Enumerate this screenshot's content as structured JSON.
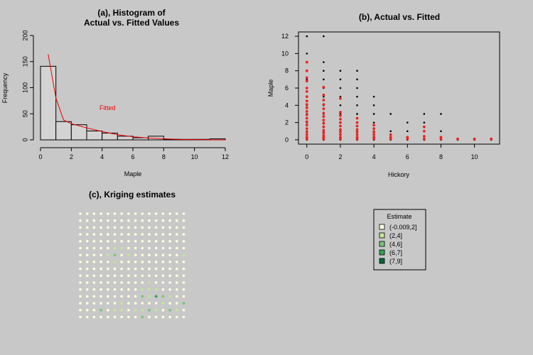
{
  "colors": {
    "background": "#c8c8c8",
    "fitted": "#ee0000",
    "actual": "#000000"
  },
  "chart_data": [
    {
      "type": "bar",
      "title_lines": [
        "(a), Histogram of",
        "Actual vs. Fitted Values"
      ],
      "xlabel": "Maple",
      "ylabel": "Frequency",
      "xlim": [
        0,
        12
      ],
      "ylim": [
        0,
        200
      ],
      "xticks": [
        "0",
        "2",
        "4",
        "6",
        "8",
        "10",
        "12"
      ],
      "yticks": [
        "0",
        "50",
        "100",
        "150",
        "200"
      ],
      "bins": [
        {
          "x0": 0,
          "x1": 1,
          "count": 141
        },
        {
          "x0": 1,
          "x1": 2,
          "count": 35
        },
        {
          "x0": 2,
          "x1": 3,
          "count": 29
        },
        {
          "x0": 3,
          "x1": 4,
          "count": 17
        },
        {
          "x0": 4,
          "x1": 5,
          "count": 13
        },
        {
          "x0": 5,
          "x1": 6,
          "count": 7
        },
        {
          "x0": 6,
          "x1": 7,
          "count": 4
        },
        {
          "x0": 7,
          "x1": 8,
          "count": 7
        },
        {
          "x0": 8,
          "x1": 9,
          "count": 1
        },
        {
          "x0": 9,
          "x1": 10,
          "count": 1
        },
        {
          "x0": 10,
          "x1": 11,
          "count": 1
        },
        {
          "x0": 11,
          "x1": 12,
          "count": 2
        }
      ],
      "fitted_curve": {
        "name": "Fitted",
        "x": [
          0.5,
          1,
          1.5,
          2,
          3,
          4,
          5,
          6,
          7,
          8,
          9,
          10,
          11,
          12
        ],
        "y": [
          164,
          80,
          38,
          31,
          23,
          16,
          10,
          6,
          3.5,
          2,
          1,
          0.5,
          0.2,
          0.1
        ]
      }
    },
    {
      "type": "scatter",
      "title": "(b), Actual vs. Fitted",
      "xlabel": "Hickory",
      "ylabel": "Maple",
      "xlim": [
        -0.5,
        11.5
      ],
      "ylim": [
        -0.5,
        12.5
      ],
      "xticks": [
        "0",
        "2",
        "4",
        "6",
        "8",
        "10"
      ],
      "yticks": [
        "0",
        "2",
        "4",
        "6",
        "8",
        "10",
        "12"
      ],
      "series": [
        {
          "label": "actual",
          "points": [
            [
              0,
              0
            ],
            [
              0,
              1
            ],
            [
              0,
              2
            ],
            [
              0,
              3
            ],
            [
              0,
              4
            ],
            [
              0,
              5
            ],
            [
              0,
              6
            ],
            [
              0,
              7
            ],
            [
              0,
              8
            ],
            [
              0,
              9
            ],
            [
              0,
              10
            ],
            [
              0,
              12
            ],
            [
              1,
              0
            ],
            [
              1,
              1
            ],
            [
              1,
              2
            ],
            [
              1,
              3
            ],
            [
              1,
              4
            ],
            [
              1,
              5
            ],
            [
              1,
              6
            ],
            [
              1,
              7
            ],
            [
              1,
              8
            ],
            [
              1,
              9
            ],
            [
              1,
              12
            ],
            [
              2,
              0
            ],
            [
              2,
              1
            ],
            [
              2,
              2
            ],
            [
              2,
              3
            ],
            [
              2,
              4
            ],
            [
              2,
              5
            ],
            [
              2,
              6
            ],
            [
              2,
              7
            ],
            [
              2,
              8
            ],
            [
              3,
              0
            ],
            [
              3,
              1
            ],
            [
              3,
              2
            ],
            [
              3,
              3
            ],
            [
              3,
              4
            ],
            [
              3,
              5
            ],
            [
              3,
              6
            ],
            [
              3,
              7
            ],
            [
              3,
              8
            ],
            [
              4,
              0
            ],
            [
              4,
              1
            ],
            [
              4,
              2
            ],
            [
              4,
              3
            ],
            [
              4,
              4
            ],
            [
              4,
              5
            ],
            [
              5,
              0
            ],
            [
              5,
              1
            ],
            [
              5,
              3
            ],
            [
              6,
              0
            ],
            [
              6,
              1
            ],
            [
              6,
              2
            ],
            [
              7,
              0
            ],
            [
              7,
              1
            ],
            [
              7,
              2
            ],
            [
              7,
              3
            ],
            [
              8,
              0
            ],
            [
              8,
              1
            ],
            [
              8,
              3
            ],
            [
              9,
              0
            ],
            [
              10,
              0
            ],
            [
              11,
              0
            ]
          ]
        },
        {
          "label": "fitted",
          "points": [
            [
              0,
              0.1
            ],
            [
              0,
              0.3
            ],
            [
              0,
              0.6
            ],
            [
              0,
              0.9
            ],
            [
              0,
              1.3
            ],
            [
              0,
              1.7
            ],
            [
              0,
              2.1
            ],
            [
              0,
              2.5
            ],
            [
              0,
              2.9
            ],
            [
              0,
              3.3
            ],
            [
              0,
              3.7
            ],
            [
              0,
              4.1
            ],
            [
              0,
              4.5
            ],
            [
              0,
              5.0
            ],
            [
              0,
              5.6
            ],
            [
              0,
              6.0
            ],
            [
              0,
              6.8
            ],
            [
              0,
              7.2
            ],
            [
              0,
              8.0
            ],
            [
              0,
              9.0
            ],
            [
              1,
              0.1
            ],
            [
              1,
              0.3
            ],
            [
              1,
              0.5
            ],
            [
              1,
              0.8
            ],
            [
              1,
              1.1
            ],
            [
              1,
              1.5
            ],
            [
              1,
              1.9
            ],
            [
              1,
              2.3
            ],
            [
              1,
              2.7
            ],
            [
              1,
              3.1
            ],
            [
              1,
              3.6
            ],
            [
              1,
              4.1
            ],
            [
              1,
              4.6
            ],
            [
              1,
              5.2
            ],
            [
              1,
              6.1
            ],
            [
              2,
              0.1
            ],
            [
              2,
              0.3
            ],
            [
              2,
              0.6
            ],
            [
              2,
              0.9
            ],
            [
              2,
              1.2
            ],
            [
              2,
              1.6
            ],
            [
              2,
              2.0
            ],
            [
              2,
              2.4
            ],
            [
              2,
              2.8
            ],
            [
              2,
              3.2
            ],
            [
              2,
              4.8
            ],
            [
              3,
              0.1
            ],
            [
              3,
              0.3
            ],
            [
              3,
              0.6
            ],
            [
              3,
              0.9
            ],
            [
              3,
              1.2
            ],
            [
              3,
              1.6
            ],
            [
              3,
              2.0
            ],
            [
              3,
              2.5
            ],
            [
              4,
              0.1
            ],
            [
              4,
              0.3
            ],
            [
              4,
              0.6
            ],
            [
              4,
              0.9
            ],
            [
              4,
              1.3
            ],
            [
              4,
              1.7
            ],
            [
              5,
              0.1
            ],
            [
              5,
              0.3
            ],
            [
              5,
              0.6
            ],
            [
              6,
              0.1
            ],
            [
              6,
              0.3
            ],
            [
              7,
              0.1
            ],
            [
              7,
              0.4
            ],
            [
              7,
              1.0
            ],
            [
              7,
              1.5
            ],
            [
              8,
              0.1
            ],
            [
              8,
              0.3
            ],
            [
              9,
              0.1
            ],
            [
              10,
              0.1
            ],
            [
              11,
              0.1
            ]
          ]
        }
      ]
    },
    {
      "type": "heatmap",
      "title": "(c), Kriging estimates",
      "legend": {
        "title": "Estimate",
        "labels": [
          "(-0.009,2]",
          "(2,4]",
          "(4,6]",
          "(6,7]",
          "(7,9]"
        ],
        "colors": [
          "#ffffe0",
          "#c2e699",
          "#78c679",
          "#31a354",
          "#006837"
        ]
      },
      "grid_rows": [
        "0000000000000000",
        "0000000000000000",
        "0000000000000000",
        "0000000000000000",
        "0000000000000000",
        "0000011000000000",
        "0000120100000001",
        "0000010000000000",
        "0000000000000000",
        "0000000000000000",
        "0000000000100000",
        "0000000001110000",
        "0000000002132100",
        "0000001000001002",
        "0002011011210210",
        "0000000002000000"
      ]
    }
  ]
}
